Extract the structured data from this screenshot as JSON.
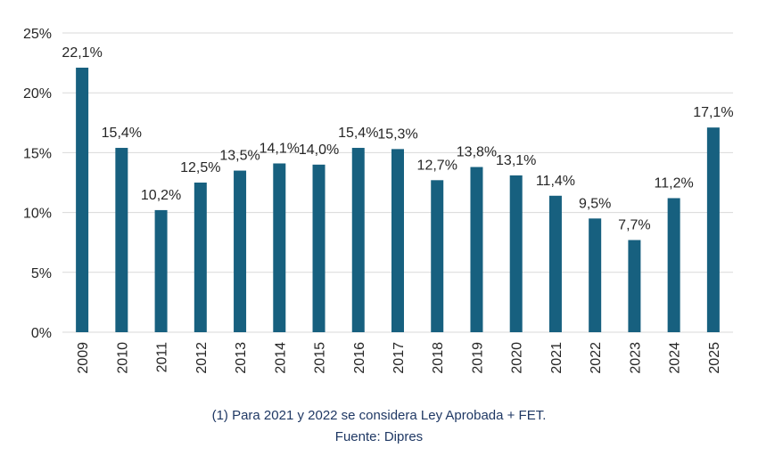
{
  "chart_data": {
    "type": "bar",
    "categories": [
      "2009",
      "2010",
      "2011",
      "2012",
      "2013",
      "2014",
      "2015",
      "2016",
      "2017",
      "2018",
      "2019",
      "2020",
      "2021",
      "2022",
      "2023",
      "2024",
      "2025"
    ],
    "values": [
      22.1,
      15.4,
      10.2,
      12.5,
      13.5,
      14.1,
      14.0,
      15.4,
      15.3,
      12.7,
      13.8,
      13.1,
      11.4,
      9.5,
      7.7,
      11.2,
      17.1
    ],
    "data_labels": [
      "22,1%",
      "15,4%",
      "10,2%",
      "12,5%",
      "13,5%",
      "14,1%",
      "14,0%",
      "15,4%",
      "15,3%",
      "12,7%",
      "13,8%",
      "13,1%",
      "11,4%",
      "9,5%",
      "7,7%",
      "11,2%",
      "17,1%"
    ],
    "y_ticks": [
      0,
      5,
      10,
      15,
      20,
      25
    ],
    "y_tick_labels": [
      "0%",
      "5%",
      "10%",
      "15%",
      "20%",
      "25%"
    ],
    "ylim": [
      0,
      25
    ],
    "grid": true,
    "bar_color": "#17607f",
    "grid_color": "#d9d9d9"
  },
  "footer": {
    "note": "(1)    Para 2021 y 2022 se considera Ley Aprobada + FET.",
    "source": "Fuente: Dipres"
  }
}
